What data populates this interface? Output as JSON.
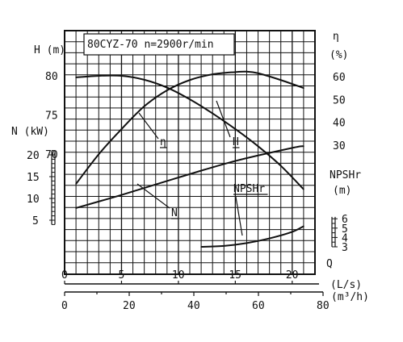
{
  "chart_data": {
    "type": "line",
    "title": "80CYZ-70 n=2900r/min",
    "x_axis": {
      "primary": {
        "label": "Q",
        "unit": "(L/s)",
        "ticks": [
          0,
          5,
          10,
          15,
          20
        ],
        "range": [
          0,
          22
        ]
      },
      "secondary": {
        "unit": "(m³/h)",
        "ticks": [
          0,
          20,
          40,
          60,
          80
        ],
        "range": [
          0,
          80
        ]
      }
    },
    "y_axes": {
      "H": {
        "label": "H (m)",
        "ticks": [
          70,
          75,
          80
        ],
        "range": [
          65,
          85
        ]
      },
      "N": {
        "label": "N (kW)",
        "ticks": [
          5,
          10,
          15,
          20
        ],
        "range": [
          0,
          25
        ]
      },
      "eta": {
        "label": "η",
        "unit": "(%)",
        "ticks": [
          30,
          40,
          50,
          60
        ],
        "range": [
          0,
          70
        ]
      },
      "NPSHr": {
        "label": "NPSHr",
        "unit": "(m)",
        "ticks": [
          3,
          4,
          5,
          6
        ],
        "range": [
          3,
          6
        ]
      }
    },
    "grid": true,
    "series": [
      {
        "name": "H",
        "axis": "H",
        "x": [
          1,
          3,
          5,
          7,
          9,
          11,
          13,
          15,
          17,
          19,
          21
        ],
        "y": [
          79.8,
          80.0,
          80.0,
          79.5,
          78.5,
          77.0,
          75.2,
          73.2,
          71.0,
          68.5,
          65.5
        ]
      },
      {
        "name": "η",
        "axis": "eta",
        "x": [
          1,
          3,
          5,
          7,
          9,
          11,
          13,
          15,
          16,
          17,
          19,
          21
        ],
        "y": [
          13,
          26,
          37,
          47,
          54,
          58.5,
          61,
          62,
          62.2,
          61.5,
          58.5,
          55
        ]
      },
      {
        "name": "N",
        "axis": "N",
        "x": [
          1,
          5,
          10,
          15,
          20,
          21
        ],
        "y": [
          7.8,
          10.8,
          14.8,
          18.6,
          21.6,
          22
        ]
      },
      {
        "name": "NPSHr",
        "axis": "NPSHr",
        "x": [
          12,
          14,
          16,
          18,
          20,
          21
        ],
        "y": [
          3.0,
          3.1,
          3.4,
          3.9,
          4.6,
          5.2
        ]
      }
    ]
  }
}
